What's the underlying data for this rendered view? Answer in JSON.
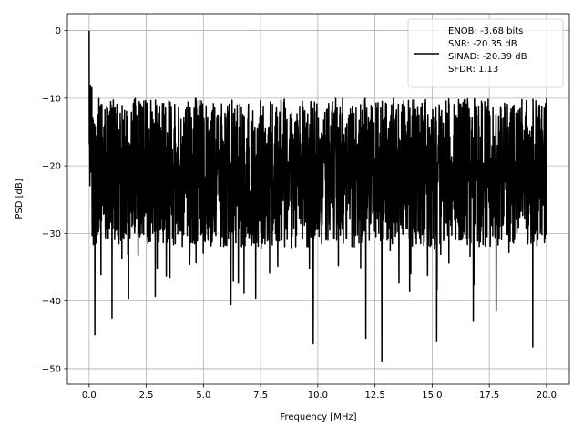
{
  "chart_data": {
    "type": "line",
    "title": "",
    "xlabel": "Frequency [MHz]",
    "ylabel": "PSD [dB]",
    "xlim": [
      -0.95,
      21.0
    ],
    "ylim": [
      -52.3,
      2.5
    ],
    "x_ticks": [
      0.0,
      2.5,
      5.0,
      7.5,
      10.0,
      12.5,
      15.0,
      17.5,
      20.0
    ],
    "x_tick_labels": [
      "0.0",
      "2.5",
      "5.0",
      "7.5",
      "10.0",
      "12.5",
      "15.0",
      "17.5",
      "20.0"
    ],
    "y_ticks": [
      0,
      -10,
      -20,
      -30,
      -40,
      -50
    ],
    "y_tick_labels": [
      "0",
      "−10",
      "−20",
      "−30",
      "−40",
      "−50"
    ],
    "grid": true,
    "legend_position": "top-right",
    "series": [
      {
        "name": "ENOB: -3.68 bits\nSNR: -20.35 dB\nSINAD: -20.39 dB\nSFDR: 1.13",
        "color": "#000000",
        "description_of_shape": "dense noise floor between approximately -10 and -30 dB across 0–20 MHz with a peak of 0 dB near 0 MHz and dips as low as about -49 dB",
        "peak": {
          "x": 0.0,
          "y": 0.0
        },
        "band": {
          "x_start": 0.0,
          "x_end": 20.0,
          "upper": -10.0,
          "lower": -30.0
        },
        "notable_minima": [
          {
            "x": 0.25,
            "y": -45.0
          },
          {
            "x": 1.0,
            "y": -42.5
          },
          {
            "x": 6.2,
            "y": -40.5
          },
          {
            "x": 9.8,
            "y": -46.3
          },
          {
            "x": 12.1,
            "y": -45.5
          },
          {
            "x": 12.8,
            "y": -49.0
          },
          {
            "x": 15.2,
            "y": -46.0
          },
          {
            "x": 16.8,
            "y": -43.0
          },
          {
            "x": 17.8,
            "y": -41.5
          },
          {
            "x": 19.4,
            "y": -46.8
          }
        ]
      }
    ]
  }
}
